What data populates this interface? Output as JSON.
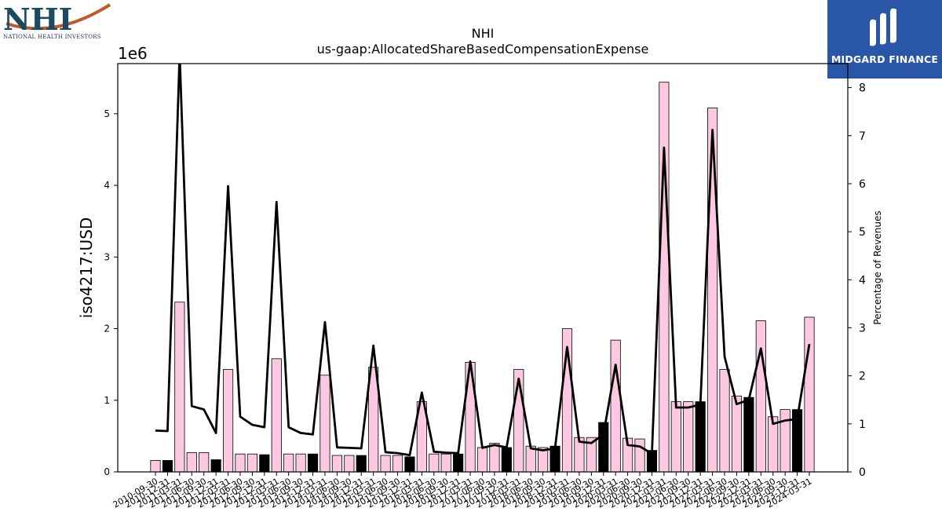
{
  "header": {
    "title_line1": "NHI",
    "title_line2": "us-gaap:AllocatedShareBasedCompensationExpense"
  },
  "logos": {
    "left_text": "NHI",
    "left_caption": "NATIONAL HEALTH INVESTORS",
    "right_text": "MIDGARD FINANCE",
    "right_bg": "#2a56a8"
  },
  "chart_data": {
    "type": "bar",
    "title": "NHI us-gaap:AllocatedShareBasedCompensationExpense",
    "ylabel": "iso4217:USD",
    "y_offset_label": "1e6",
    "y2label": "Percentage of Revenues",
    "ylim": [
      0,
      5.7
    ],
    "y2lim": [
      0,
      8.5
    ],
    "y_ticks": [
      "0",
      "1",
      "2",
      "3",
      "4",
      "5"
    ],
    "y2_ticks": [
      "0",
      "1",
      "2",
      "3",
      "4",
      "5",
      "6",
      "7",
      "8"
    ],
    "colors": {
      "quarter_bar": "#fcc9e0",
      "annual_bar": "#000000",
      "line": "#000000"
    },
    "categories": [
      "2010-09-30",
      "2010-12-31",
      "2011-03-31",
      "2011-06-30",
      "2011-09-30",
      "2011-12-31",
      "2012-03-31",
      "2012-06-30",
      "2012-09-30",
      "2012-12-31",
      "2013-03-31",
      "2013-06-30",
      "2013-09-30",
      "2013-12-31",
      "2014-03-31",
      "2014-06-30",
      "2014-09-30",
      "2014-12-31",
      "2015-03-31",
      "2015-06-30",
      "2015-09-30",
      "2015-12-31",
      "2016-03-31",
      "2016-06-30",
      "2016-09-30",
      "2016-12-31",
      "2017-03-31",
      "2017-06-30",
      "2017-09-30",
      "2017-12-31",
      "2018-03-31",
      "2018-06-30",
      "2018-09-30",
      "2018-12-31",
      "2019-03-31",
      "2019-06-30",
      "2019-09-30",
      "2019-12-31",
      "2020-03-31",
      "2020-06-30",
      "2020-09-30",
      "2020-12-31",
      "2021-03-31",
      "2021-06-30",
      "2021-09-30",
      "2021-12-31",
      "2022-03-31",
      "2022-06-30",
      "2022-09-30",
      "2022-12-31",
      "2023-03-31",
      "2023-06-30",
      "2023-09-30",
      "2023-12-31",
      "2024-03-31"
    ],
    "x_tick_labels": [
      "2010-09-30",
      "2010-12-31",
      "2011-03-31",
      "2011-06-30",
      "2011-09-30",
      "2011-12-31",
      "2012-03-31",
      "2012-06-30",
      "2012-09-30",
      "2012-12-31",
      "2013-03-31",
      "2013-06-30",
      "2013-09-30",
      "2013-12-31",
      "2014-03-31",
      "2014-06-30",
      "2014-09-30",
      "2014-12-31",
      "2015-03-31",
      "2015-06-30",
      "2015-09-30",
      "2015-12-31",
      "2016-03-31",
      "2016-06-30",
      "2016-09-30",
      "2016-12-31",
      "2017-03-31",
      "2017-06-30",
      "2017-09-30",
      "2017-12-31",
      "2018-03-31",
      "2018-06-30",
      "2018-09-30",
      "2018-12-31",
      "2019-03-31",
      "2019-06-30",
      "2019-09-30",
      "2019-12-31",
      "2020-03-31",
      "2020-06-30",
      "2020-09-30",
      "2020-12-31",
      "2021-03-31",
      "2021-06-30",
      "2021-09-30",
      "2021-12-31",
      "2022-03-31",
      "2022-06-30",
      "2022-09-30",
      "2022-12-31",
      "2023-03-31",
      "2023-06-30",
      "2023-09-30",
      "2023-12-31",
      "2024-03-31"
    ],
    "annual_flags": [
      false,
      true,
      false,
      false,
      false,
      true,
      false,
      false,
      false,
      true,
      false,
      false,
      false,
      true,
      false,
      false,
      false,
      true,
      false,
      false,
      false,
      true,
      false,
      false,
      false,
      true,
      false,
      false,
      false,
      true,
      false,
      false,
      false,
      true,
      false,
      false,
      false,
      true,
      false,
      false,
      false,
      true,
      false,
      false,
      false,
      true,
      false,
      false,
      false,
      true,
      false,
      false,
      false,
      true,
      false
    ],
    "values": [
      0.16,
      0.16,
      2.37,
      0.27,
      0.27,
      0.17,
      1.43,
      0.25,
      0.25,
      0.24,
      1.58,
      0.25,
      0.25,
      0.25,
      1.35,
      0.23,
      0.23,
      0.23,
      1.46,
      0.23,
      0.23,
      0.21,
      0.98,
      0.25,
      0.25,
      0.25,
      1.53,
      0.34,
      0.4,
      0.34,
      1.43,
      0.36,
      0.34,
      0.36,
      2.0,
      0.48,
      0.48,
      0.69,
      1.84,
      0.47,
      0.46,
      0.3,
      5.44,
      0.98,
      0.98,
      0.98,
      5.08,
      1.43,
      1.06,
      1.04,
      2.11,
      0.77,
      0.87,
      0.87,
      2.16
    ],
    "line_values": [
      0.86,
      0.85,
      8.7,
      1.37,
      1.3,
      0.81,
      5.95,
      1.15,
      0.98,
      0.93,
      5.62,
      0.93,
      0.81,
      0.78,
      3.12,
      0.51,
      0.5,
      0.49,
      2.63,
      0.41,
      0.39,
      0.35,
      1.65,
      0.42,
      0.4,
      0.39,
      2.3,
      0.5,
      0.56,
      0.51,
      1.94,
      0.49,
      0.45,
      0.49,
      2.6,
      0.63,
      0.6,
      0.78,
      2.23,
      0.56,
      0.53,
      0.38,
      6.75,
      1.34,
      1.34,
      1.4,
      7.12,
      2.4,
      1.41,
      1.5,
      2.57,
      1.0,
      1.07,
      1.1,
      2.66
    ]
  }
}
